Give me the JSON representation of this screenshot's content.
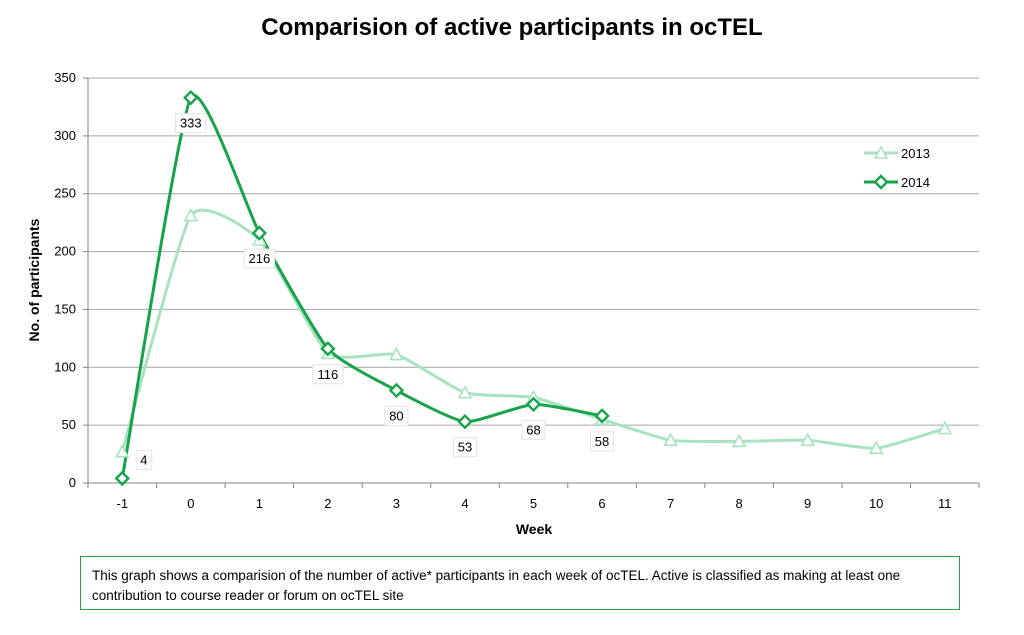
{
  "chart_data": {
    "type": "line",
    "title": "Comparision of active participants in ocTEL",
    "xlabel": "Week",
    "ylabel": "No. of participants",
    "x": [
      -1,
      0,
      1,
      2,
      3,
      4,
      5,
      6,
      7,
      8,
      9,
      10,
      11
    ],
    "x_tick_labels": [
      "-1",
      "0",
      "1",
      "2",
      "3",
      "4",
      "5",
      "6",
      "7",
      "8",
      "9",
      "10",
      "11"
    ],
    "ylim": [
      0,
      350
    ],
    "y_ticks": [
      0,
      50,
      100,
      150,
      200,
      250,
      300,
      350
    ],
    "y_tick_labels": [
      "0",
      "50",
      "100",
      "150",
      "200",
      "250",
      "300",
      "350"
    ],
    "grid": "horizontal",
    "legend_position": "right",
    "series": [
      {
        "name": "2013",
        "color": "#a8e3bf",
        "marker": "triangle",
        "values": [
          27,
          231,
          210,
          112,
          111,
          78,
          74,
          55,
          37,
          36,
          37,
          30,
          47
        ]
      },
      {
        "name": "2014",
        "color": "#16a349",
        "marker": "diamond",
        "values": [
          4,
          333,
          216,
          116,
          80,
          53,
          68,
          58,
          null,
          null,
          null,
          null,
          null
        ],
        "data_labels": [
          "4",
          "333",
          "216",
          "116",
          "80",
          "53",
          "68",
          "58"
        ]
      }
    ]
  },
  "note": {
    "text": "This graph shows a comparision of the number of active* participants in each week of ocTEL. Active is classified as making at least one contribution to course reader or forum on ocTEL site"
  }
}
